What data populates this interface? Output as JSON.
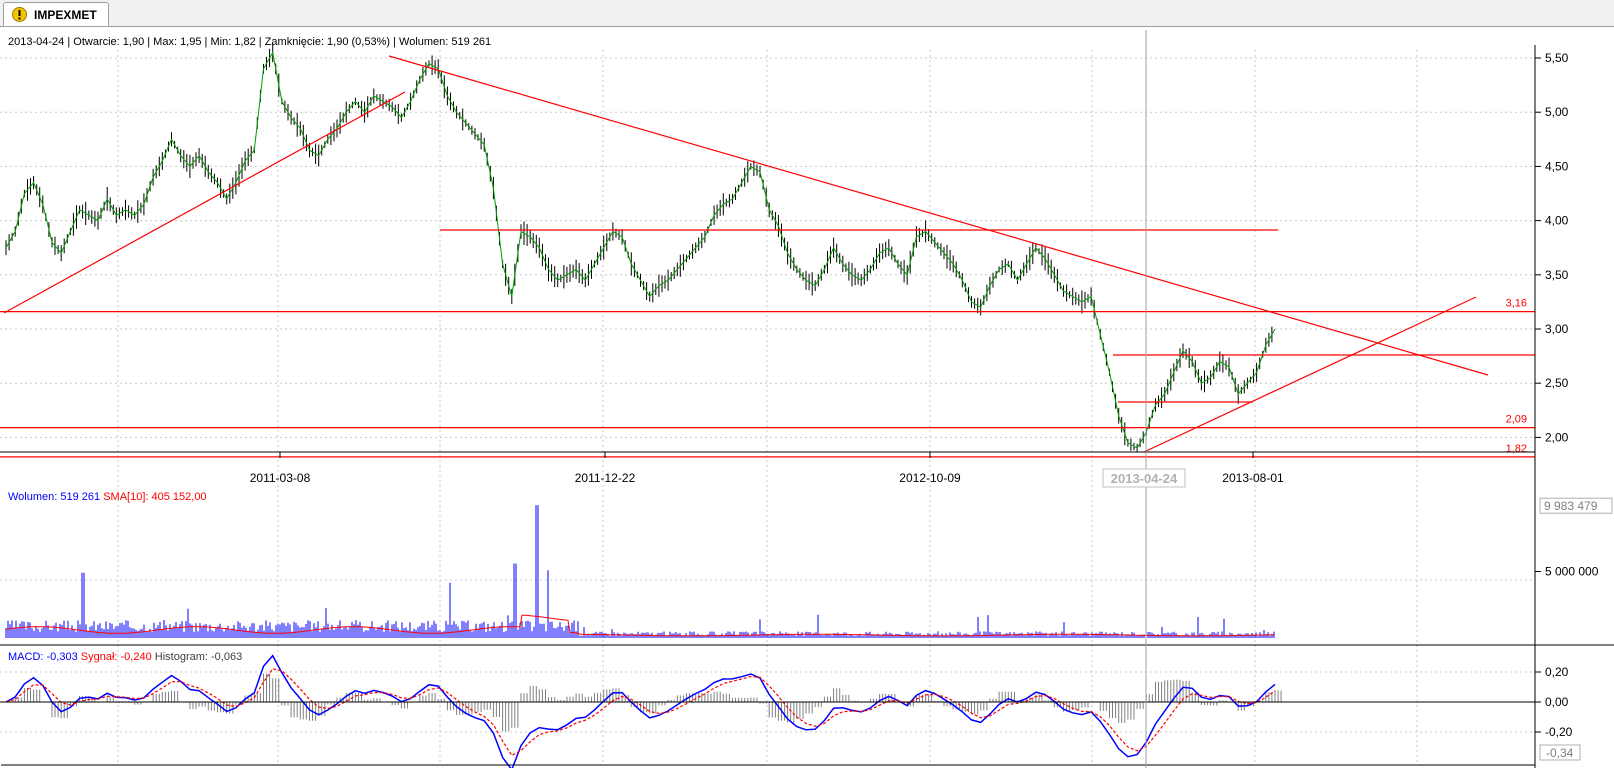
{
  "tab": {
    "label": "IMPEXMET",
    "icon": "warning-icon"
  },
  "info_bar": {
    "date": "2013-04-24",
    "open": "Otwarcie: 1,90",
    "max": "Max: 1,95",
    "min": "Min: 1,82",
    "close": "Zamknięcie: 1,90 (0,53%)",
    "volume": "Wolumen: 519 261"
  },
  "colors": {
    "candle": "#000000",
    "price_line": "#00a000",
    "trendline": "#ff0000",
    "volume_bar": "#0000ff",
    "sma": "#ff0000",
    "macd": "#0000ff",
    "signal": "#ff0000",
    "histogram": "#808080",
    "grid": "#c8c8c8",
    "crosshair": "#a0a0a0"
  },
  "chart_data": [
    {
      "type": "line",
      "panel": "price",
      "x_ticks": [
        "2011-03-08",
        "2011-12-22",
        "2012-10-09",
        "2013-08-01"
      ],
      "crosshair_label": "2013-04-24",
      "y_ticks": [
        "5,50",
        "5,00",
        "4,50",
        "4,00",
        "3,50",
        "3,00",
        "2,50",
        "2,00"
      ],
      "ylim": [
        1.78,
        5.62
      ],
      "marked_levels": [
        {
          "label": "3,16",
          "value": 3.16
        },
        {
          "label": "2,09",
          "value": 2.09
        },
        {
          "label": "1,82",
          "value": 1.82
        }
      ],
      "series": [
        {
          "values": [
            3.75,
            3.9,
            4.25,
            4.35,
            4.15,
            3.8,
            3.7,
            3.9,
            4.1,
            4.05,
            4.0,
            4.2,
            4.05,
            4.1,
            4.05,
            4.15,
            4.4,
            4.55,
            4.75,
            4.6,
            4.5,
            4.6,
            4.45,
            4.35,
            4.2,
            4.35,
            4.55,
            4.65,
            5.4,
            5.55,
            5.1,
            4.95,
            4.85,
            4.65,
            4.6,
            4.75,
            4.85,
            5.0,
            5.1,
            5.0,
            5.15,
            5.1,
            5.05,
            4.95,
            5.1,
            5.3,
            5.45,
            5.4,
            5.15,
            5.0,
            4.9,
            4.8,
            4.7,
            4.3,
            3.6,
            3.3,
            3.9,
            3.85,
            3.75,
            3.55,
            3.45,
            3.5,
            3.55,
            3.45,
            3.6,
            3.75,
            3.9,
            3.85,
            3.6,
            3.45,
            3.3,
            3.4,
            3.45,
            3.55,
            3.65,
            3.75,
            3.85,
            4.05,
            4.15,
            4.2,
            4.35,
            4.5,
            4.45,
            4.1,
            3.95,
            3.7,
            3.55,
            3.45,
            3.4,
            3.55,
            3.75,
            3.6,
            3.5,
            3.45,
            3.55,
            3.7,
            3.75,
            3.6,
            3.5,
            3.85,
            3.9,
            3.8,
            3.7,
            3.6,
            3.45,
            3.25,
            3.2,
            3.4,
            3.55,
            3.6,
            3.45,
            3.6,
            3.75,
            3.65,
            3.5,
            3.35,
            3.3,
            3.25,
            3.3,
            2.95,
            2.6,
            2.2,
            1.95,
            1.9,
            2.05,
            2.3,
            2.4,
            2.6,
            2.8,
            2.7,
            2.5,
            2.55,
            2.7,
            2.65,
            2.4,
            2.5,
            2.6,
            2.85,
            3.0
          ],
          "x_start": "2010-10-01",
          "x_step_days": 7
        }
      ]
    },
    {
      "type": "bar",
      "panel": "volume",
      "legend": {
        "volume": "Wolumen: 519 261",
        "sma": "SMA[10]: 405 152,00"
      },
      "y_ticks": [
        "5 000 000"
      ],
      "max_label": "9 983 479",
      "ylim": [
        0,
        10000000
      ]
    },
    {
      "type": "line",
      "panel": "macd",
      "legend": {
        "macd": "MACD: -0,303",
        "signal": "Sygnał: -0,240",
        "histogram": "Histogram: -0,063"
      },
      "y_ticks": [
        "0,20",
        "0,00",
        "-0,20"
      ],
      "current_label": "-0,34",
      "ylim": [
        -0.36,
        0.25
      ]
    }
  ]
}
